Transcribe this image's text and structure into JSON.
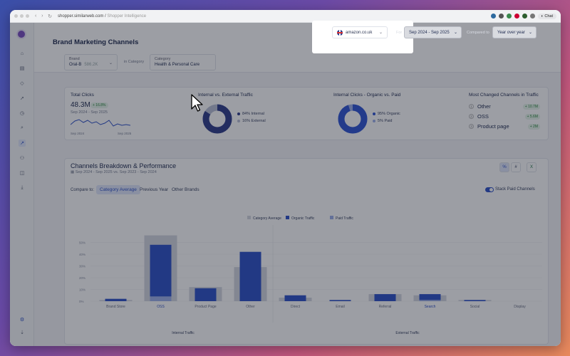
{
  "browser": {
    "url": "shopper.similarweb.com",
    "page_label": "Shopper Intelligence",
    "chat_label": "Chat"
  },
  "header": {
    "title": "Brand Marketing Channels",
    "brand_label": "Brand",
    "brand_value": "Oral-B",
    "brand_metric": "586.2K",
    "in_category": "in Category",
    "category_label": "Category",
    "category_value": "Health & Personal Care",
    "domain": "amazon.co.uk",
    "for_label": "For",
    "date_range": "Sep 2024 - Sep 2025",
    "compared_label": "Compared to",
    "compare_value": "Year over year"
  },
  "total_clicks": {
    "title": "Total Clicks",
    "value": "48.3M",
    "change": "+ 16.8%",
    "period": "Sep 2024 - Sep 2025",
    "x_start": "Sep 2024",
    "x_end": "Sep 2025"
  },
  "internal_external": {
    "title": "Internal vs. External Traffic",
    "legend": [
      {
        "label": "84% Internal",
        "color": "#2f3d8a"
      },
      {
        "label": "16% External",
        "color": "#b8bfd6"
      }
    ],
    "values": [
      84,
      16
    ]
  },
  "organic_paid": {
    "title": "Internal Clicks - Organic vs. Paid",
    "legend": [
      {
        "label": "95% Organic",
        "color": "#2f55d4"
      },
      {
        "label": "5% Paid",
        "color": "#9db0ea"
      }
    ],
    "values": [
      95,
      5
    ]
  },
  "most_changed": {
    "title": "Most Changed Channels in Traffic",
    "items": [
      {
        "num": "1",
        "name": "Other",
        "change": "+ 10.7M"
      },
      {
        "num": "2",
        "name": "OSS",
        "change": "+ 5.6M"
      },
      {
        "num": "3",
        "name": "Product page",
        "change": "+ 2M"
      }
    ]
  },
  "breakdown": {
    "title": "Channels Breakdown & Performance",
    "subtitle": "Sep 2024 - Sep 2025 vs. Sep 2023 - Sep 2024",
    "compare_label": "Compare to:",
    "tabs": [
      "Category Average",
      "Previous Year",
      "Other Brands"
    ],
    "stack_label": "Stack Paid Channels",
    "pct_btn": "%",
    "num_btn": "#",
    "excel_btn": "X"
  },
  "chart_data": {
    "type": "bar",
    "legend": [
      "Category Average",
      "Organic Traffic",
      "Paid Traffic"
    ],
    "colors": {
      "Category Average": "#d5d8e0",
      "Organic Traffic": "#2e51c8",
      "Paid Traffic": "#9db0ea"
    },
    "categories": [
      "Brand Store",
      "OSS",
      "Product Page",
      "Other",
      "Direct",
      "Email",
      "Referral",
      "Search",
      "Social",
      "Display"
    ],
    "highlight_labels": [
      "OSS",
      "Search"
    ],
    "groups": [
      {
        "label": "Internal Traffic",
        "count": 4
      },
      {
        "label": "External Traffic",
        "count": 6
      }
    ],
    "series": [
      {
        "name": "Category Average",
        "values": [
          1,
          56,
          12,
          29,
          3,
          0,
          6,
          5,
          1,
          0
        ]
      },
      {
        "name": "Organic Traffic",
        "values": [
          2,
          44,
          11,
          42,
          5,
          1,
          6,
          5,
          1,
          0
        ]
      },
      {
        "name": "Paid Traffic",
        "values": [
          0,
          4,
          0,
          0,
          0,
          0,
          0,
          1,
          0,
          0
        ]
      }
    ],
    "yticks": [
      "0%",
      "10%",
      "20%",
      "30%",
      "40%",
      "50%"
    ],
    "ylim": [
      0,
      60
    ]
  }
}
